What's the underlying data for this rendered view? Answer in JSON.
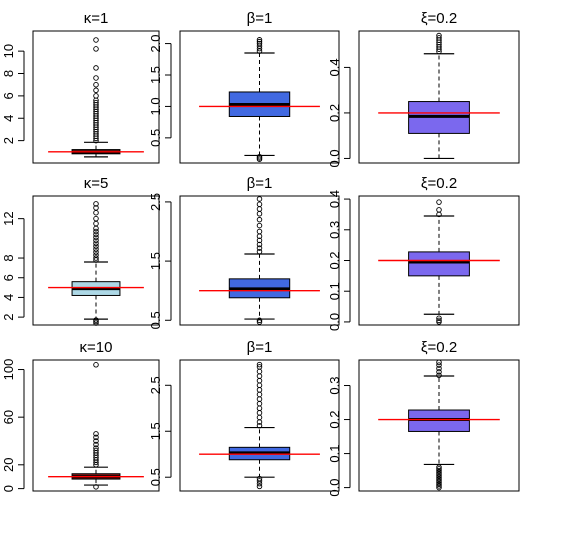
{
  "chart_data": [
    {
      "type": "box",
      "title": "κ=1",
      "ylim": [
        0,
        11.8
      ],
      "ticks": [
        2,
        4,
        6,
        8,
        10
      ],
      "tick_labels": [
        "2",
        "4",
        "6",
        "8",
        "10"
      ],
      "true_value": 1,
      "box_color": "#8B1A1A",
      "box": {
        "whisker_low": 0.55,
        "q1": 0.82,
        "median": 0.97,
        "q3": 1.2,
        "whisker_high": 1.85
      },
      "outliers_low": [],
      "outliers_high": [
        2.0,
        2.2,
        2.4,
        2.6,
        2.8,
        3.0,
        3.2,
        3.4,
        3.6,
        3.8,
        4.0,
        4.2,
        4.4,
        4.6,
        4.8,
        5.0,
        5.2,
        5.4,
        5.6,
        6.0,
        6.5,
        7.0,
        7.6,
        8.5,
        10.2,
        11.0
      ]
    },
    {
      "type": "box",
      "title": "β=1",
      "ylim": [
        0.1,
        2.2
      ],
      "ticks": [
        0.5,
        1.0,
        1.5,
        2.0
      ],
      "tick_labels": [
        "0.5",
        "1.0",
        "1.5",
        "2.0"
      ],
      "true_value": 1,
      "box_color": "#4169E1",
      "box": {
        "whisker_low": 0.22,
        "q1": 0.84,
        "median": 1.03,
        "q3": 1.23,
        "whisker_high": 1.85
      },
      "outliers_low": [
        0.16,
        0.18,
        0.2
      ],
      "outliers_high": [
        1.88,
        1.92,
        1.96,
        2.0,
        2.03,
        2.06
      ]
    },
    {
      "type": "box",
      "title": "ξ=0.2",
      "ylim": [
        -0.02,
        0.56
      ],
      "ticks": [
        0.0,
        0.2,
        0.4
      ],
      "tick_labels": [
        "0.0",
        "0.2",
        "0.4"
      ],
      "true_value": 0.2,
      "box_color": "#7B68EE",
      "box": {
        "whisker_low": 0.0,
        "q1": 0.11,
        "median": 0.185,
        "q3": 0.25,
        "whisker_high": 0.46
      },
      "outliers_low": [],
      "outliers_high": [
        0.47,
        0.48,
        0.49,
        0.5,
        0.51,
        0.52,
        0.53,
        0.54
      ]
    },
    {
      "type": "box",
      "title": "κ=5",
      "ylim": [
        1.2,
        14.3
      ],
      "ticks": [
        2,
        4,
        6,
        8,
        12
      ],
      "tick_labels": [
        "2",
        "4",
        "6",
        "8",
        "12"
      ],
      "true_value": 5,
      "box_color": "#ADD8E6",
      "box": {
        "whisker_low": 1.8,
        "q1": 4.2,
        "median": 4.9,
        "q3": 5.6,
        "whisker_high": 7.6
      },
      "outliers_low": [
        1.4,
        1.55,
        1.7
      ],
      "outliers_high": [
        7.8,
        8.0,
        8.3,
        8.6,
        8.9,
        9.2,
        9.5,
        9.8,
        10.1,
        10.4,
        10.7,
        11.0,
        11.5,
        12.0,
        12.6,
        13.1,
        13.5
      ]
    },
    {
      "type": "box",
      "title": "β=1",
      "ylim": [
        0.42,
        2.6
      ],
      "ticks": [
        0.5,
        1.5,
        2.5
      ],
      "tick_labels": [
        "0.5",
        "1.5",
        "2.5"
      ],
      "true_value": 1,
      "box_color": "#4169E1",
      "box": {
        "whisker_low": 0.52,
        "q1": 0.88,
        "median": 1.03,
        "q3": 1.2,
        "whisker_high": 1.62
      },
      "outliers_low": [
        0.47,
        0.5
      ],
      "outliers_high": [
        1.66,
        1.72,
        1.78,
        1.85,
        1.92,
        2.0,
        2.1,
        2.2,
        2.3,
        2.38,
        2.46,
        2.55
      ]
    },
    {
      "type": "box",
      "title": "ξ=0.2",
      "ylim": [
        -0.01,
        0.41
      ],
      "ticks": [
        0.0,
        0.1,
        0.2,
        0.3,
        0.4
      ],
      "tick_labels": [
        "0.0",
        "0.1",
        "0.2",
        "0.3",
        "0.4"
      ],
      "true_value": 0.2,
      "box_color": "#7B68EE",
      "box": {
        "whisker_low": 0.025,
        "q1": 0.15,
        "median": 0.195,
        "q3": 0.228,
        "whisker_high": 0.345
      },
      "outliers_low": [
        0.0,
        0.005,
        0.012
      ],
      "outliers_high": [
        0.35,
        0.365,
        0.39
      ]
    },
    {
      "type": "box",
      "title": "κ=10",
      "ylim": [
        -2,
        108
      ],
      "ticks": [
        0,
        20,
        60,
        100
      ],
      "tick_labels": [
        "0",
        "20",
        "60",
        "100"
      ],
      "true_value": 10,
      "box_color": "#8B1A1A",
      "box": {
        "whisker_low": 3,
        "q1": 8,
        "median": 10,
        "q3": 12.5,
        "whisker_high": 18
      },
      "outliers_low": [
        1.5
      ],
      "outliers_high": [
        20,
        22,
        24,
        26,
        28,
        30,
        32,
        34,
        37,
        40,
        43,
        46,
        104
      ]
    },
    {
      "type": "box",
      "title": "β=1",
      "ylim": [
        0.2,
        3.05
      ],
      "ticks": [
        0.5,
        1.5,
        2.5
      ],
      "tick_labels": [
        "0.5",
        "1.5",
        "2.5"
      ],
      "true_value": 1,
      "box_color": "#4169E1",
      "box": {
        "whisker_low": 0.5,
        "q1": 0.88,
        "median": 1.03,
        "q3": 1.15,
        "whisker_high": 1.58
      },
      "outliers_low": [
        0.3,
        0.36,
        0.42,
        0.47
      ],
      "outliers_high": [
        1.62,
        1.7,
        1.8,
        1.9,
        2.0,
        2.1,
        2.2,
        2.3,
        2.4,
        2.5,
        2.6,
        2.7,
        2.8,
        2.9,
        2.95
      ]
    },
    {
      "type": "box",
      "title": "ξ=0.2",
      "ylim": [
        -0.01,
        0.375
      ],
      "ticks": [
        0.0,
        0.1,
        0.2,
        0.3
      ],
      "tick_labels": [
        "0.0",
        "0.1",
        "0.2",
        "0.3"
      ],
      "true_value": 0.2,
      "box_color": "#7B68EE",
      "box": {
        "whisker_low": 0.068,
        "q1": 0.165,
        "median": 0.2,
        "q3": 0.228,
        "whisker_high": 0.328
      },
      "outliers_low": [
        0.0,
        0.005,
        0.01,
        0.015,
        0.02,
        0.025,
        0.03,
        0.035,
        0.04,
        0.045,
        0.05,
        0.055,
        0.06
      ],
      "outliers_high": [
        0.33,
        0.34,
        0.35,
        0.36,
        0.368
      ]
    }
  ]
}
